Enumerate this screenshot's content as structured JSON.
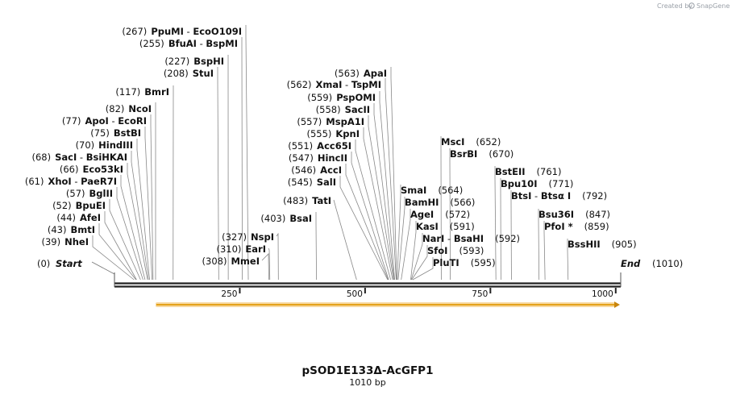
{
  "app": {
    "brand_prefix": "Created by",
    "brand_name": "SnapGene"
  },
  "map": {
    "title": "pSOD1E133Δ-AcGFP1",
    "length_label": "1010 bp",
    "length": 1010,
    "start_label": "Start",
    "start_pos": "(0)",
    "end_label": "End",
    "end_pos": "(1010)",
    "ruler_ticks": [
      250,
      500,
      750,
      1000
    ],
    "feature_color": "#f5c04a"
  },
  "sites": [
    {
      "pos": 39,
      "names": [
        "NheI"
      ],
      "pos_label": "(39)"
    },
    {
      "pos": 43,
      "names": [
        "BmtI"
      ],
      "pos_label": "(43)"
    },
    {
      "pos": 44,
      "names": [
        "AfeI"
      ],
      "pos_label": "(44)"
    },
    {
      "pos": 52,
      "names": [
        "BpuEI"
      ],
      "pos_label": "(52)"
    },
    {
      "pos": 57,
      "names": [
        "BglII"
      ],
      "pos_label": "(57)"
    },
    {
      "pos": 61,
      "names": [
        "XhoI",
        "PaeR7I"
      ],
      "pos_label": "(61)"
    },
    {
      "pos": 66,
      "names": [
        "Eco53kI"
      ],
      "pos_label": "(66)"
    },
    {
      "pos": 68,
      "names": [
        "SacI",
        "BsiHKAI"
      ],
      "pos_label": "(68)"
    },
    {
      "pos": 70,
      "names": [
        "HindIII"
      ],
      "pos_label": "(70)"
    },
    {
      "pos": 75,
      "names": [
        "BstBI"
      ],
      "pos_label": "(75)"
    },
    {
      "pos": 77,
      "names": [
        "ApoI",
        "EcoRI"
      ],
      "pos_label": "(77)"
    },
    {
      "pos": 82,
      "names": [
        "NcoI"
      ],
      "pos_label": "(82)"
    },
    {
      "pos": 117,
      "names": [
        "BmrI"
      ],
      "pos_label": "(117)"
    },
    {
      "pos": 208,
      "names": [
        "StuI"
      ],
      "pos_label": "(208)"
    },
    {
      "pos": 227,
      "names": [
        "BspHI"
      ],
      "pos_label": "(227)"
    },
    {
      "pos": 255,
      "names": [
        "BfuAI",
        "BspMI"
      ],
      "pos_label": "(255)"
    },
    {
      "pos": 267,
      "names": [
        "PpuMI",
        "EcoO109I"
      ],
      "pos_label": "(267)"
    },
    {
      "pos": 308,
      "names": [
        "MmeI"
      ],
      "pos_label": "(308)"
    },
    {
      "pos": 310,
      "names": [
        "EarI"
      ],
      "pos_label": "(310)"
    },
    {
      "pos": 327,
      "names": [
        "NspI"
      ],
      "pos_label": "(327)"
    },
    {
      "pos": 403,
      "names": [
        "BsaI"
      ],
      "pos_label": "(403)"
    },
    {
      "pos": 483,
      "names": [
        "TatI"
      ],
      "pos_label": "(483)"
    },
    {
      "pos": 545,
      "names": [
        "SalI"
      ],
      "pos_label": "(545)"
    },
    {
      "pos": 546,
      "names": [
        "AccI"
      ],
      "pos_label": "(546)"
    },
    {
      "pos": 547,
      "names": [
        "HincII"
      ],
      "pos_label": "(547)"
    },
    {
      "pos": 551,
      "names": [
        "Acc65I"
      ],
      "pos_label": "(551)"
    },
    {
      "pos": 555,
      "names": [
        "KpnI"
      ],
      "pos_label": "(555)"
    },
    {
      "pos": 557,
      "names": [
        "MspA1I"
      ],
      "pos_label": "(557)"
    },
    {
      "pos": 558,
      "names": [
        "SacII"
      ],
      "pos_label": "(558)"
    },
    {
      "pos": 559,
      "names": [
        "PspOMI"
      ],
      "pos_label": "(559)"
    },
    {
      "pos": 562,
      "names": [
        "XmaI",
        "TspMI"
      ],
      "pos_label": "(562)"
    },
    {
      "pos": 563,
      "names": [
        "ApaI"
      ],
      "pos_label": "(563)"
    },
    {
      "pos": 564,
      "names": [
        "SmaI"
      ],
      "pos_label": "(564)"
    },
    {
      "pos": 566,
      "names": [
        "BamHI"
      ],
      "pos_label": "(566)"
    },
    {
      "pos": 572,
      "names": [
        "AgeI"
      ],
      "pos_label": "(572)"
    },
    {
      "pos": 591,
      "names": [
        "KasI"
      ],
      "pos_label": "(591)"
    },
    {
      "pos": 592,
      "names": [
        "NarI",
        "BsaHI"
      ],
      "pos_label": "(592)"
    },
    {
      "pos": 593,
      "names": [
        "SfoI"
      ],
      "pos_label": "(593)"
    },
    {
      "pos": 595,
      "names": [
        "PluTI"
      ],
      "pos_label": "(595)"
    },
    {
      "pos": 652,
      "names": [
        "MscI"
      ],
      "pos_label": "(652)"
    },
    {
      "pos": 670,
      "names": [
        "BsrBI"
      ],
      "pos_label": "(670)"
    },
    {
      "pos": 761,
      "names": [
        "BstEII"
      ],
      "pos_label": "(761)"
    },
    {
      "pos": 771,
      "names": [
        "Bpu10I"
      ],
      "pos_label": "(771)"
    },
    {
      "pos": 792,
      "names": [
        "BtsI",
        "Btsα I"
      ],
      "pos_label": "(792)"
    },
    {
      "pos": 847,
      "names": [
        "Bsu36I"
      ],
      "pos_label": "(847)"
    },
    {
      "pos": 859,
      "names": [
        "PfoI *"
      ],
      "pos_label": "(859)"
    },
    {
      "pos": 905,
      "names": [
        "BssHII"
      ],
      "pos_label": "(905)"
    }
  ]
}
